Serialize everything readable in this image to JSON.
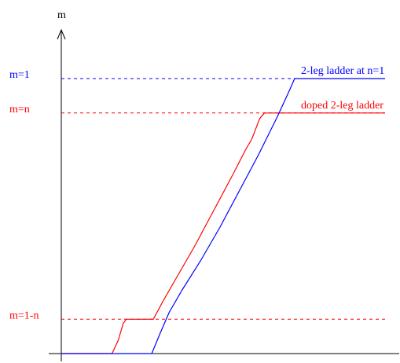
{
  "chart_data": {
    "type": "line",
    "title": "",
    "xlabel": "",
    "ylabel": "m",
    "axis_ticks": false,
    "grid": false,
    "legend": "inline labels at right end of curves",
    "ylim": [
      -0.06,
      1.16
    ],
    "xlim": [
      -0.02,
      1.16
    ],
    "reference_levels": [
      {
        "label": "m=1",
        "value": 1.0,
        "color": "#0000ff"
      },
      {
        "label": "m=n",
        "value": 0.875,
        "color": "#ff0000"
      },
      {
        "label": "m=1-n",
        "value": 0.125,
        "color": "#ff0000"
      }
    ],
    "series": [
      {
        "name": "doped 2-leg ladder",
        "color": "#ff0000",
        "points": [
          [
            0.0,
            0.0
          ],
          [
            0.16,
            0.0
          ],
          [
            0.18,
            0.05
          ],
          [
            0.195,
            0.11
          ],
          [
            0.205,
            0.125
          ],
          [
            0.29,
            0.125
          ],
          [
            0.32,
            0.19
          ],
          [
            0.36,
            0.27
          ],
          [
            0.42,
            0.39
          ],
          [
            0.48,
            0.52
          ],
          [
            0.54,
            0.65
          ],
          [
            0.58,
            0.74
          ],
          [
            0.6,
            0.78
          ],
          [
            0.625,
            0.855
          ],
          [
            0.64,
            0.875
          ],
          [
            1.02,
            0.875
          ]
        ]
      },
      {
        "name": "2-leg ladder at n=1",
        "color": "#0000ff",
        "points": [
          [
            0.0,
            0.0
          ],
          [
            0.285,
            0.0
          ],
          [
            0.31,
            0.07
          ],
          [
            0.34,
            0.15
          ],
          [
            0.38,
            0.23
          ],
          [
            0.44,
            0.34
          ],
          [
            0.5,
            0.46
          ],
          [
            0.56,
            0.59
          ],
          [
            0.62,
            0.72
          ],
          [
            0.68,
            0.86
          ],
          [
            0.72,
            0.96
          ],
          [
            0.735,
            1.0
          ],
          [
            1.02,
            1.0
          ]
        ]
      }
    ]
  }
}
